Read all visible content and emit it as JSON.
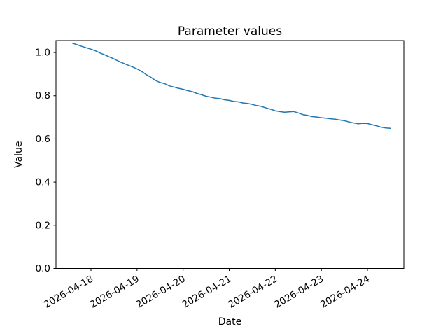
{
  "chart_data": {
    "type": "line",
    "title": "Parameter values",
    "xlabel": "Date",
    "ylabel": "Value",
    "grid": false,
    "legend": null,
    "line_color": "#1f77b4",
    "line_width": 1.5,
    "spine_color": "#000000",
    "background_color": "#ffffff",
    "x_origin_date": "2026-04-18",
    "x_tick_labels": [
      "2026-04-18",
      "2026-04-19",
      "2026-04-20",
      "2026-04-21",
      "2026-04-22",
      "2026-04-23",
      "2026-04-24"
    ],
    "x_tick_days": [
      0,
      1,
      2,
      3,
      4,
      5,
      6
    ],
    "x_tick_rotation_deg": 30,
    "y_tick_labels": [
      "0.0",
      "0.2",
      "0.4",
      "0.6",
      "0.8",
      "1.0"
    ],
    "y_ticks": [
      0.0,
      0.2,
      0.4,
      0.6,
      0.8,
      1.0
    ],
    "xlim_days": [
      -0.76,
      6.79
    ],
    "ylim": [
      0,
      1.0553
    ],
    "series": [
      {
        "name": "parameter-values",
        "x_start_days": -0.4,
        "x_step_days": 0.1,
        "values": [
          1.043,
          1.036,
          1.0285,
          1.0218,
          1.0155,
          1.0075,
          0.9975,
          0.989,
          0.9795,
          0.9705,
          0.9595,
          0.9505,
          0.9415,
          0.9335,
          0.924,
          0.9125,
          0.8975,
          0.8855,
          0.8705,
          0.861,
          0.856,
          0.8455,
          0.8405,
          0.8345,
          0.83,
          0.8235,
          0.8185,
          0.8105,
          0.8045,
          0.7975,
          0.7935,
          0.7885,
          0.7865,
          0.7815,
          0.7785,
          0.7735,
          0.7715,
          0.7665,
          0.7645,
          0.7595,
          0.7545,
          0.7505,
          0.7435,
          0.7375,
          0.7305,
          0.7265,
          0.7235,
          0.7255,
          0.727,
          0.7205,
          0.7125,
          0.709,
          0.7035,
          0.7015,
          0.6985,
          0.6965,
          0.6935,
          0.6915,
          0.6875,
          0.6845,
          0.6785,
          0.674,
          0.6705,
          0.6725,
          0.6715,
          0.666,
          0.6605,
          0.6545,
          0.651,
          0.649
        ]
      }
    ]
  }
}
